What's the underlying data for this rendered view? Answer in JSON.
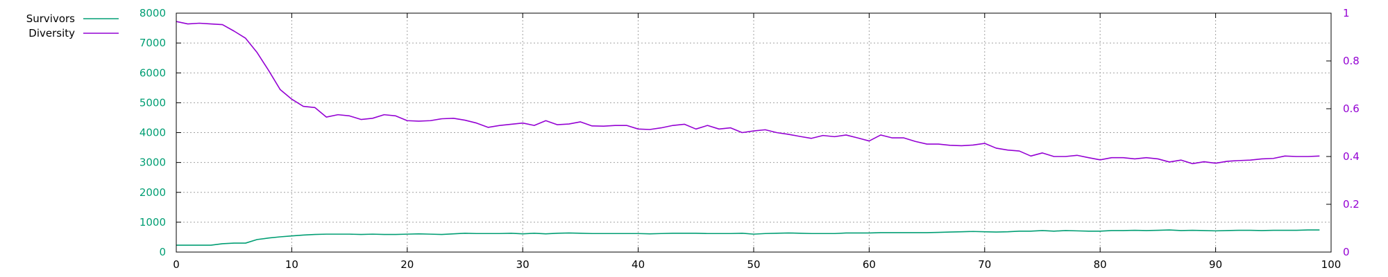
{
  "chart_data": {
    "type": "line",
    "title": "",
    "xlabel": "",
    "ylabel": "",
    "y2label": "",
    "grid": true,
    "legend_position": "top-left",
    "xlim": [
      0,
      100
    ],
    "ylim": [
      0,
      8000
    ],
    "y2lim": [
      0,
      1
    ],
    "x_ticks": [
      "0",
      "10",
      "20",
      "30",
      "40",
      "50",
      "60",
      "70",
      "80",
      "90",
      "100"
    ],
    "y_ticks": [
      "0",
      "1000",
      "2000",
      "3000",
      "4000",
      "5000",
      "6000",
      "7000",
      "8000"
    ],
    "y2_ticks": [
      "0",
      "0.2",
      "0.4",
      "0.6",
      "0.8",
      "1"
    ],
    "colors": {
      "survivors": "#009e73",
      "diversity": "#9400d3",
      "grid": "#a0a0a0",
      "axis": "#000000"
    },
    "series": [
      {
        "name": "Survivors",
        "axis": "left",
        "color": "#009e73",
        "x": [
          0,
          1,
          2,
          3,
          4,
          5,
          6,
          7,
          8,
          9,
          10,
          11,
          12,
          13,
          14,
          15,
          16,
          17,
          18,
          19,
          20,
          21,
          22,
          23,
          24,
          25,
          26,
          27,
          28,
          29,
          30,
          31,
          32,
          33,
          34,
          35,
          36,
          37,
          38,
          39,
          40,
          41,
          42,
          43,
          44,
          45,
          46,
          47,
          48,
          49,
          50,
          51,
          52,
          53,
          54,
          55,
          56,
          57,
          58,
          59,
          60,
          61,
          62,
          63,
          64,
          65,
          66,
          67,
          68,
          69,
          70,
          71,
          72,
          73,
          74,
          75,
          76,
          77,
          78,
          79,
          80,
          81,
          82,
          83,
          84,
          85,
          86,
          87,
          88,
          89,
          90,
          91,
          92,
          93,
          94,
          95,
          96,
          97,
          98,
          99
        ],
        "values": [
          230,
          230,
          230,
          230,
          280,
          300,
          300,
          420,
          470,
          510,
          540,
          570,
          590,
          600,
          600,
          600,
          590,
          600,
          590,
          590,
          600,
          610,
          600,
          590,
          610,
          630,
          620,
          620,
          620,
          630,
          610,
          630,
          610,
          630,
          640,
          630,
          620,
          620,
          620,
          620,
          620,
          610,
          620,
          630,
          630,
          630,
          620,
          620,
          620,
          630,
          600,
          620,
          630,
          640,
          630,
          620,
          620,
          620,
          640,
          640,
          640,
          650,
          650,
          650,
          650,
          650,
          660,
          670,
          680,
          690,
          680,
          670,
          680,
          700,
          700,
          720,
          700,
          720,
          710,
          700,
          700,
          720,
          720,
          730,
          720,
          730,
          740,
          720,
          730,
          720,
          710,
          720,
          730,
          730,
          720,
          730,
          730,
          730,
          740,
          740
        ]
      },
      {
        "name": "Diversity",
        "axis": "right",
        "color": "#9400d3",
        "x": [
          0,
          1,
          2,
          3,
          4,
          5,
          6,
          7,
          8,
          9,
          10,
          11,
          12,
          13,
          14,
          15,
          16,
          17,
          18,
          19,
          20,
          21,
          22,
          23,
          24,
          25,
          26,
          27,
          28,
          29,
          30,
          31,
          32,
          33,
          34,
          35,
          36,
          37,
          38,
          39,
          40,
          41,
          42,
          43,
          44,
          45,
          46,
          47,
          48,
          49,
          50,
          51,
          52,
          53,
          54,
          55,
          56,
          57,
          58,
          59,
          60,
          61,
          62,
          63,
          64,
          65,
          66,
          67,
          68,
          69,
          70,
          71,
          72,
          73,
          74,
          75,
          76,
          77,
          78,
          79,
          80,
          81,
          82,
          83,
          84,
          85,
          86,
          87,
          88,
          89,
          90,
          91,
          92,
          93,
          94,
          95,
          96,
          97,
          98,
          99
        ],
        "values": [
          0.965,
          0.955,
          0.958,
          0.955,
          0.952,
          0.925,
          0.895,
          0.835,
          0.76,
          0.68,
          0.64,
          0.61,
          0.605,
          0.565,
          0.575,
          0.57,
          0.555,
          0.56,
          0.575,
          0.57,
          0.55,
          0.548,
          0.55,
          0.558,
          0.56,
          0.552,
          0.54,
          0.522,
          0.53,
          0.535,
          0.54,
          0.53,
          0.55,
          0.533,
          0.536,
          0.545,
          0.528,
          0.527,
          0.53,
          0.53,
          0.515,
          0.513,
          0.52,
          0.53,
          0.535,
          0.515,
          0.53,
          0.515,
          0.52,
          0.5,
          0.507,
          0.512,
          0.5,
          0.493,
          0.484,
          0.476,
          0.488,
          0.483,
          0.49,
          0.478,
          0.465,
          0.49,
          0.478,
          0.478,
          0.463,
          0.452,
          0.452,
          0.447,
          0.445,
          0.448,
          0.455,
          0.435,
          0.427,
          0.423,
          0.402,
          0.415,
          0.4,
          0.4,
          0.405,
          0.395,
          0.386,
          0.395,
          0.395,
          0.39,
          0.395,
          0.39,
          0.377,
          0.385,
          0.37,
          0.378,
          0.372,
          0.38,
          0.383,
          0.385,
          0.39,
          0.392,
          0.402,
          0.4,
          0.4,
          0.402
        ]
      }
    ]
  }
}
